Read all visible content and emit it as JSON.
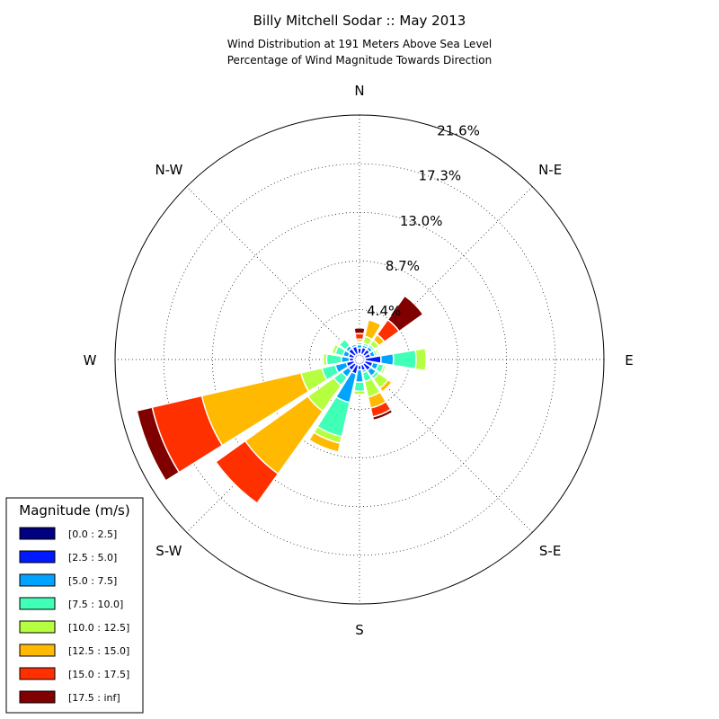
{
  "chart_data": {
    "type": "windrose",
    "title": "Billy Mitchell Sodar :: May 2013",
    "subtitle_lines": [
      "Wind Distribution at 191 Meters Above Sea Level",
      "Percentage of Wind Magnitude Towards Direction"
    ],
    "direction_labels": [
      "N",
      "N-E",
      "E",
      "S-E",
      "S",
      "S-W",
      "W",
      "N-W"
    ],
    "radial_ticks": [
      "4.4%",
      "8.7%",
      "13.0%",
      "17.3%",
      "21.6%"
    ],
    "radial_tick_values": [
      4.4,
      8.7,
      13.0,
      17.3,
      21.6
    ],
    "r_max": 21.6,
    "legend_title": "Magnitude (m/s)",
    "bins": [
      {
        "label": "[0.0 : 2.5]",
        "color": "#000080"
      },
      {
        "label": "[2.5 : 5.0]",
        "color": "#0019ff"
      },
      {
        "label": "[5.0 : 7.5]",
        "color": "#00a4ff"
      },
      {
        "label": "[7.5 : 10.0]",
        "color": "#40ffb6"
      },
      {
        "label": "[10.0 : 12.5]",
        "color": "#b6ff40"
      },
      {
        "label": "[12.5 : 15.0]",
        "color": "#ffb900"
      },
      {
        "label": "[15.0 : 17.5]",
        "color": "#ff3000"
      },
      {
        "label": "[17.5 : inf]",
        "color": "#800000"
      }
    ],
    "direction_angles_deg": [
      0,
      22.5,
      45,
      67.5,
      90,
      112.5,
      135,
      157.5,
      180,
      202.5,
      225,
      247.5,
      270,
      292.5,
      315,
      337.5
    ],
    "cumulative_percent_by_direction": [
      [
        0.5,
        1.0,
        1.3,
        1.5,
        1.6,
        1.8,
        2.3,
        2.8
      ],
      [
        0.5,
        1.1,
        1.3,
        1.5,
        2.1,
        3.6,
        3.6,
        3.6
      ],
      [
        0.5,
        1.1,
        1.4,
        1.6,
        2.1,
        2.7,
        4.3,
        6.9
      ],
      [
        0.5,
        1.0,
        1.4,
        1.6,
        1.8,
        1.9,
        1.9,
        1.9
      ],
      [
        0.5,
        1.9,
        3.0,
        5.0,
        5.9,
        6.0,
        6.0,
        6.0
      ],
      [
        0.5,
        1.2,
        1.7,
        2.2,
        2.4,
        2.4,
        2.4,
        2.4
      ],
      [
        0.5,
        1.2,
        1.8,
        2.1,
        3.1,
        3.5,
        3.5,
        3.5
      ],
      [
        0.5,
        1.0,
        1.2,
        2.0,
        3.4,
        4.4,
        5.2,
        5.5
      ],
      [
        0.5,
        0.9,
        2.0,
        2.8,
        3.1,
        3.1,
        3.1,
        3.1
      ],
      [
        0.5,
        1.3,
        3.9,
        7.0,
        7.6,
        8.4,
        8.4,
        8.4
      ],
      [
        0.5,
        1.2,
        1.9,
        2.8,
        5.6,
        12.4,
        15.6,
        15.6
      ],
      [
        0.5,
        1.2,
        2.2,
        3.4,
        5.3,
        14.3,
        18.8,
        20.2
      ],
      [
        0.5,
        0.9,
        1.6,
        2.9,
        3.2,
        3.2,
        3.2,
        3.2
      ],
      [
        0.5,
        1.0,
        1.5,
        2.2,
        2.5,
        2.6,
        2.6,
        2.6
      ],
      [
        0.5,
        1.2,
        1.5,
        2.2,
        2.3,
        2.3,
        2.3,
        2.3
      ],
      [
        0.5,
        1.2,
        1.4,
        1.4,
        1.4,
        1.4,
        1.4,
        1.4
      ]
    ]
  }
}
